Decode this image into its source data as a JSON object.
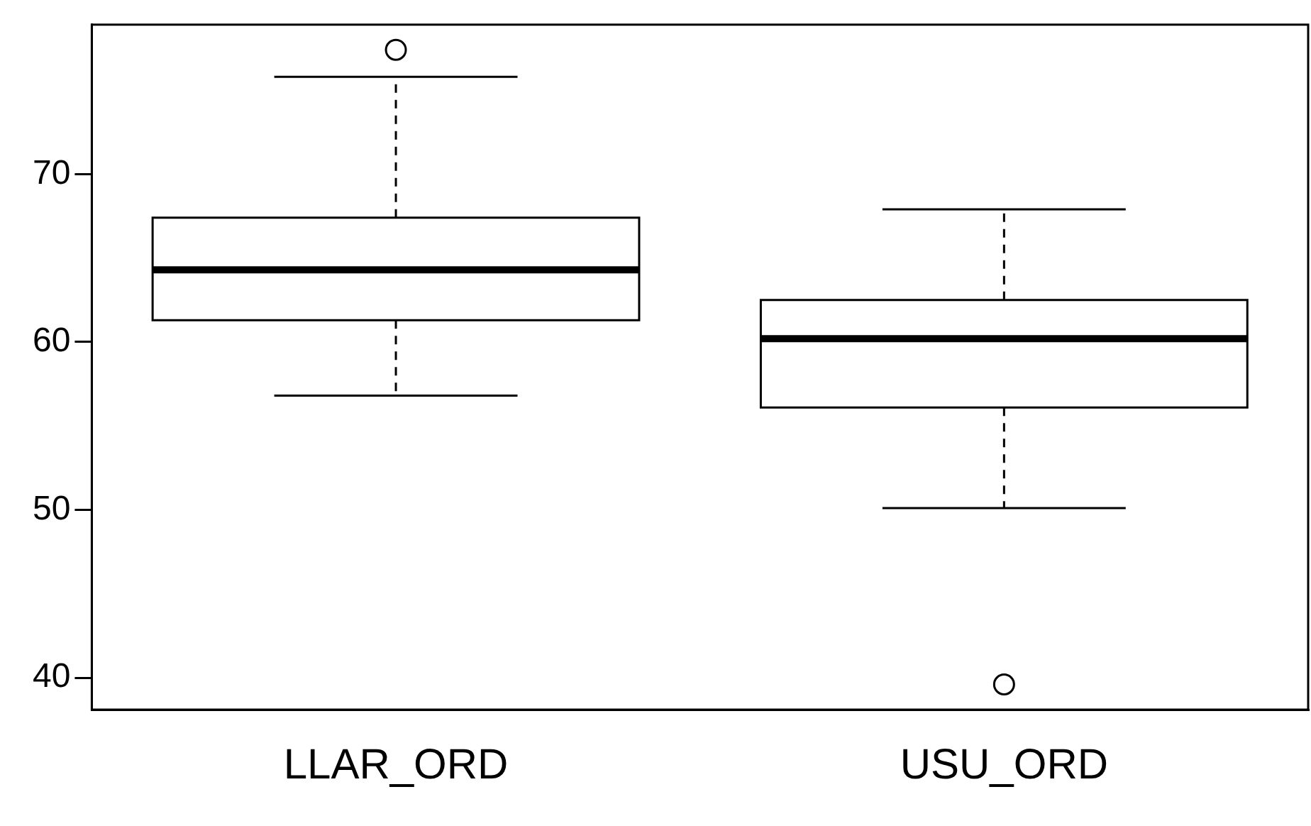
{
  "chart_data": {
    "type": "box",
    "categories": [
      "LLAR_ORD",
      "USU_ORD"
    ],
    "boxes": [
      {
        "low": 56.8,
        "q1": 61.3,
        "median": 64.3,
        "q3": 67.4,
        "high": 75.8,
        "outliers": [
          77.4
        ]
      },
      {
        "low": 50.1,
        "q1": 56.1,
        "median": 60.2,
        "q3": 62.5,
        "high": 67.9,
        "outliers": [
          39.6
        ]
      }
    ],
    "ylim": [
      38.1,
      78.9
    ],
    "yticks": [
      40,
      50,
      60,
      70
    ],
    "grid": false,
    "legend": false
  }
}
